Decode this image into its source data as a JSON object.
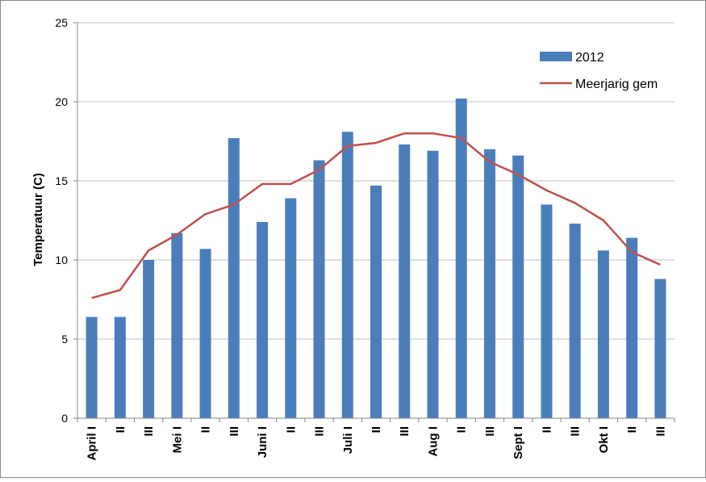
{
  "chart_data": {
    "type": "bar",
    "title": "",
    "xlabel": "",
    "ylabel": "Temperatuur (C)",
    "ylim": [
      0,
      25
    ],
    "yticks": [
      0,
      5,
      10,
      15,
      20,
      25
    ],
    "grid": true,
    "legend_position": "top-right",
    "categories": [
      "April I",
      "II",
      "III",
      "Mei I",
      "II",
      "III",
      "Juni I",
      "II",
      "III",
      "Juli I",
      "II",
      "III",
      "Aug I",
      "II",
      "III",
      "Sept I",
      "II",
      "III",
      "Okt I",
      "II",
      "III"
    ],
    "series": [
      {
        "name": "2012",
        "kind": "bar",
        "color": "#4a7ebb",
        "values": [
          6.4,
          6.4,
          10.0,
          11.7,
          10.7,
          17.7,
          12.4,
          13.9,
          16.3,
          18.1,
          14.7,
          17.3,
          16.9,
          20.2,
          17.0,
          16.6,
          13.5,
          12.3,
          10.6,
          11.4,
          8.8
        ]
      },
      {
        "name": "Meerjarig gem",
        "kind": "line",
        "color": "#c0504d",
        "values": [
          7.6,
          8.1,
          10.6,
          11.6,
          12.9,
          13.5,
          14.8,
          14.8,
          15.7,
          17.2,
          17.4,
          18.0,
          18.0,
          17.7,
          16.2,
          15.4,
          14.4,
          13.6,
          12.5,
          10.5,
          9.7
        ]
      }
    ]
  }
}
